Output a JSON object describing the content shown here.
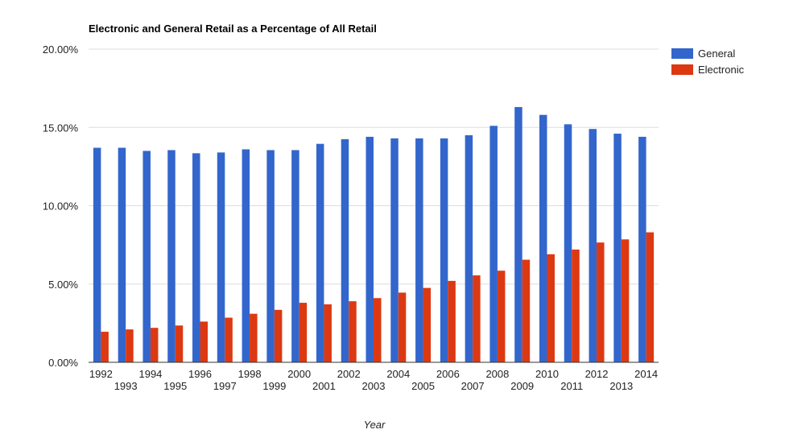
{
  "chart_data": {
    "type": "bar",
    "title": "Electronic and General Retail as a Percentage of All Retail",
    "xlabel": "Year",
    "ylabel": "",
    "categories": [
      "1992",
      "1993",
      "1994",
      "1995",
      "1996",
      "1997",
      "1998",
      "1999",
      "2000",
      "2001",
      "2002",
      "2003",
      "2004",
      "2005",
      "2006",
      "2007",
      "2008",
      "2009",
      "2010",
      "2011",
      "2012",
      "2013",
      "2014"
    ],
    "series": [
      {
        "name": "General",
        "color": "#3366cc",
        "values": [
          13.7,
          13.7,
          13.5,
          13.55,
          13.35,
          13.4,
          13.6,
          13.55,
          13.55,
          13.95,
          14.25,
          14.4,
          14.3,
          14.3,
          14.3,
          14.5,
          15.1,
          16.3,
          15.8,
          15.2,
          14.9,
          14.6,
          14.4
        ]
      },
      {
        "name": "Electronic",
        "color": "#dc3912",
        "values": [
          1.95,
          2.1,
          2.2,
          2.35,
          2.6,
          2.85,
          3.1,
          3.35,
          3.8,
          3.7,
          3.9,
          4.1,
          4.45,
          4.75,
          5.2,
          5.55,
          5.85,
          6.55,
          6.9,
          7.2,
          7.65,
          7.85,
          8.3
        ]
      }
    ],
    "ylim": [
      0,
      20
    ],
    "yticks": [
      "0.00%",
      "5.00%",
      "10.00%",
      "15.00%",
      "20.00%"
    ],
    "grid": true,
    "legend_position": "right"
  }
}
